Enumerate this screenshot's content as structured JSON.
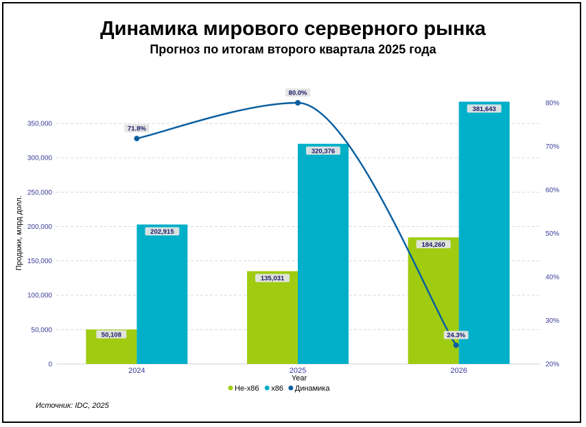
{
  "title": "Динамика мирового серверного рынка",
  "subtitle": "Прогноз по итогам второго квартала 2025 года",
  "source": "Источник: IDC, 2025",
  "colors": {
    "non_x86": "#9fcc10",
    "x86": "#00afc8",
    "dynamics": "#0a5fa0"
  },
  "chart_data": {
    "type": "bar",
    "categories": [
      "2024",
      "2025",
      "2026"
    ],
    "xlabel": "Year",
    "ylabel": "Продажи, млрд долл.",
    "ylim": [
      0,
      380000
    ],
    "yticks": [
      0,
      50000,
      100000,
      150000,
      200000,
      250000,
      300000,
      350000
    ],
    "ytick_labels": [
      "0",
      "50,000",
      "100,000",
      "150,000",
      "200,000",
      "250,000",
      "300,000",
      "350,000"
    ],
    "y2lim": [
      20,
      80
    ],
    "y2ticks": [
      20,
      30,
      40,
      50,
      60,
      70,
      80
    ],
    "y2tick_labels": [
      "20%",
      "30%",
      "40%",
      "50%",
      "60%",
      "70%",
      "80%"
    ],
    "series": [
      {
        "name": "Не-x86",
        "values": [
          50108,
          135031,
          184260
        ],
        "labels": [
          "50,108",
          "135,031",
          "184,260"
        ]
      },
      {
        "name": "x86",
        "values": [
          202915,
          320376,
          381643
        ],
        "labels": [
          "202,915",
          "320,376",
          "381,643"
        ]
      }
    ],
    "line_series": {
      "name": "Динамика",
      "values": [
        71.8,
        80.0,
        24.3
      ],
      "labels": [
        "71.8%",
        "80.0%",
        "24.3%"
      ],
      "axis": "right"
    },
    "grid": true,
    "legend": "bottom-center"
  }
}
